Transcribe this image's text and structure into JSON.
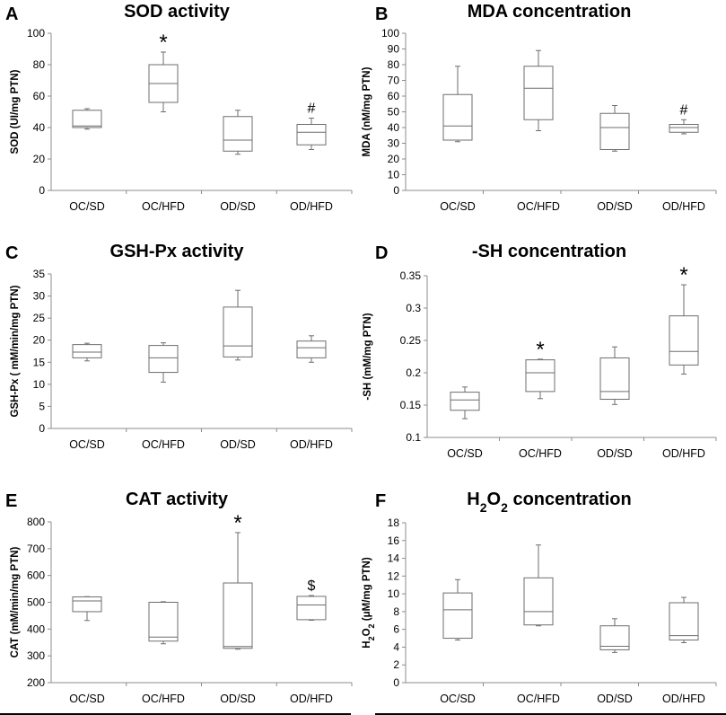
{
  "chart_data": [
    {
      "type": "boxplot",
      "panel_label": "A",
      "title": "SOD activity",
      "ylabel": "SOD (UI/mg PTN)",
      "ylim": [
        0,
        100
      ],
      "yticks": [
        0,
        20,
        40,
        60,
        80,
        100
      ],
      "ytick_labels": [
        "0",
        "20",
        "40",
        "60",
        "80",
        "100"
      ],
      "categories": [
        "OC/SD",
        "OC/HFD",
        "OD/SD",
        "OD/HFD"
      ],
      "boxes": [
        {
          "min": 39,
          "q1": 40,
          "median": 41,
          "q3": 51,
          "max": 52
        },
        {
          "min": 50,
          "q1": 56,
          "median": 68,
          "q3": 80,
          "max": 88
        },
        {
          "min": 23,
          "q1": 25,
          "median": 32,
          "q3": 47,
          "max": 51
        },
        {
          "min": 26,
          "q1": 29,
          "median": 37,
          "q3": 42,
          "max": 46
        }
      ],
      "annotations": [
        "",
        "*",
        "",
        "#"
      ]
    },
    {
      "type": "boxplot",
      "panel_label": "B",
      "title": "MDA concentration",
      "ylabel": "MDA (nM/mg PTN)",
      "ylim": [
        0,
        100
      ],
      "yticks": [
        0,
        10,
        20,
        30,
        40,
        50,
        60,
        70,
        80,
        90,
        100
      ],
      "ytick_labels": [
        "0",
        "10",
        "20",
        "30",
        "40",
        "50",
        "60",
        "70",
        "80",
        "90",
        "100"
      ],
      "categories": [
        "OC/SD",
        "OC/HFD",
        "OD/SD",
        "OD/HFD"
      ],
      "boxes": [
        {
          "min": 31,
          "q1": 32,
          "median": 41,
          "q3": 61,
          "max": 79
        },
        {
          "min": 38,
          "q1": 45,
          "median": 65,
          "q3": 79,
          "max": 89
        },
        {
          "min": 25,
          "q1": 26,
          "median": 40,
          "q3": 49,
          "max": 54
        },
        {
          "min": 36,
          "q1": 37,
          "median": 40,
          "q3": 42,
          "max": 45
        }
      ],
      "annotations": [
        "",
        "",
        "",
        "#"
      ]
    },
    {
      "type": "boxplot",
      "panel_label": "C",
      "title": "GSH-Px activity",
      "ylabel": "GSH-Px ( mM/min/mg PTN)",
      "ylim": [
        0,
        35
      ],
      "yticks": [
        0,
        5,
        10,
        15,
        20,
        25,
        30,
        35
      ],
      "ytick_labels": [
        "0",
        "5",
        "10",
        "15",
        "20",
        "25",
        "30",
        "35"
      ],
      "categories": [
        "OC/SD",
        "OC/HFD",
        "OD/SD",
        "OD/HFD"
      ],
      "boxes": [
        {
          "min": 15.3,
          "q1": 16,
          "median": 17.3,
          "q3": 19,
          "max": 19.3
        },
        {
          "min": 10.5,
          "q1": 12.7,
          "median": 16,
          "q3": 18.8,
          "max": 19.4
        },
        {
          "min": 15.5,
          "q1": 16.2,
          "median": 18.7,
          "q3": 27.5,
          "max": 31.3
        },
        {
          "min": 15,
          "q1": 16,
          "median": 18.3,
          "q3": 19.8,
          "max": 21
        }
      ],
      "annotations": [
        "",
        "",
        "",
        ""
      ]
    },
    {
      "type": "boxplot",
      "panel_label": "D",
      "title": "-SH concentration",
      "ylabel": "-SH (mM/mg PTN)",
      "ylim": [
        0.1,
        0.35
      ],
      "yticks": [
        0.1,
        0.15,
        0.2,
        0.25,
        0.3,
        0.35
      ],
      "ytick_labels": [
        "0.1",
        "0.15",
        "0.2",
        "0.25",
        "0.3",
        "0.35"
      ],
      "categories": [
        "OC/SD",
        "OC/HFD",
        "OD/SD",
        "OD/HFD"
      ],
      "boxes": [
        {
          "min": 0.129,
          "q1": 0.142,
          "median": 0.158,
          "q3": 0.17,
          "max": 0.178
        },
        {
          "min": 0.16,
          "q1": 0.171,
          "median": 0.2,
          "q3": 0.22,
          "max": 0.221
        },
        {
          "min": 0.151,
          "q1": 0.159,
          "median": 0.171,
          "q3": 0.223,
          "max": 0.24
        },
        {
          "min": 0.198,
          "q1": 0.212,
          "median": 0.233,
          "q3": 0.288,
          "max": 0.336
        }
      ],
      "annotations": [
        "",
        "*",
        "",
        "*"
      ]
    },
    {
      "type": "boxplot",
      "panel_label": "E",
      "title": "CAT activity",
      "ylabel": "CAT (mM/min/mg PTN)",
      "ylim": [
        200,
        800
      ],
      "yticks": [
        200,
        300,
        400,
        500,
        600,
        700,
        800
      ],
      "ytick_labels": [
        "200",
        "300",
        "400",
        "500",
        "600",
        "700",
        "800"
      ],
      "categories": [
        "OC/SD",
        "OC/HFD",
        "OD/SD",
        "OD/HFD"
      ],
      "boxes": [
        {
          "min": 432,
          "q1": 465,
          "median": 505,
          "q3": 520,
          "max": 521
        },
        {
          "min": 345,
          "q1": 355,
          "median": 370,
          "q3": 500,
          "max": 502
        },
        {
          "min": 325,
          "q1": 328,
          "median": 335,
          "q3": 572,
          "max": 760
        },
        {
          "min": 433,
          "q1": 435,
          "median": 490,
          "q3": 522,
          "max": 525
        }
      ],
      "annotations": [
        "",
        "",
        "*",
        "$"
      ]
    },
    {
      "type": "boxplot",
      "panel_label": "F",
      "title_parts": [
        "H",
        "2",
        "O",
        "2",
        " concentration"
      ],
      "ylabel_parts": [
        "H",
        "2",
        "O",
        "2",
        " (μM/mg PTN)"
      ],
      "ylim": [
        0,
        18
      ],
      "yticks": [
        0,
        2,
        4,
        6,
        8,
        10,
        12,
        14,
        16,
        18
      ],
      "ytick_labels": [
        "0",
        "2",
        "4",
        "6",
        "8",
        "10",
        "12",
        "14",
        "16",
        "18"
      ],
      "categories": [
        "OC/SD",
        "OC/HFD",
        "OD/SD",
        "OD/HFD"
      ],
      "boxes": [
        {
          "min": 4.8,
          "q1": 5,
          "median": 8.2,
          "q3": 10.1,
          "max": 11.6
        },
        {
          "min": 6.4,
          "q1": 6.5,
          "median": 8,
          "q3": 11.8,
          "max": 15.5
        },
        {
          "min": 3.4,
          "q1": 3.7,
          "median": 4.1,
          "q3": 6.4,
          "max": 7.2
        },
        {
          "min": 4.5,
          "q1": 4.8,
          "median": 5.3,
          "q3": 9,
          "max": 9.6
        }
      ],
      "annotations": [
        "",
        "",
        "",
        ""
      ]
    }
  ]
}
